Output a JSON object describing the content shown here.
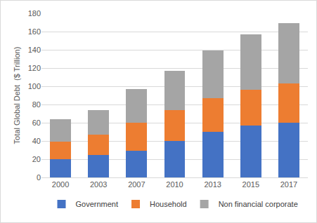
{
  "chart_data": {
    "type": "bar",
    "stacked": true,
    "y_label": "Total Global Debt  ($ Trillion)",
    "categories": [
      "2000",
      "2003",
      "2007",
      "2010",
      "2013",
      "2015",
      "2017"
    ],
    "series": [
      {
        "name": "Government",
        "color": "#4472c4",
        "values": [
          20,
          25,
          29,
          40,
          50,
          57,
          60
        ]
      },
      {
        "name": "Household",
        "color": "#ed7d31",
        "values": [
          19,
          22,
          31,
          34,
          37,
          39,
          43
        ]
      },
      {
        "name": "Non financial corporate",
        "color": "#a5a5a5",
        "values": [
          25,
          27,
          37,
          43,
          52,
          61,
          66
        ]
      }
    ],
    "ylim": [
      0,
      180
    ],
    "yticks": [
      0,
      20,
      40,
      60,
      80,
      100,
      120,
      140,
      160,
      180
    ],
    "grid": true,
    "legend": "bottom"
  }
}
